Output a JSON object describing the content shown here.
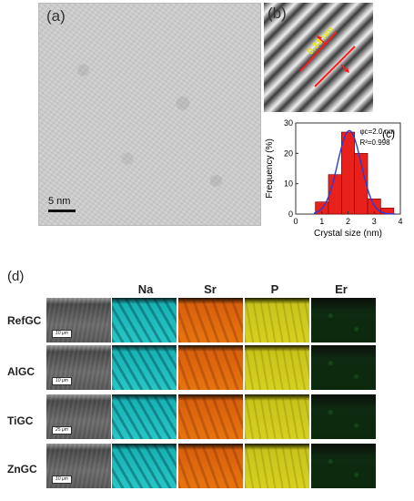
{
  "panel_a": {
    "label": "(a)",
    "scale_bar": "5  nm"
  },
  "panel_b": {
    "label": "(b)",
    "spacing": "0.33 nm"
  },
  "panel_d": {
    "label": "(d)",
    "columns": [
      "Na",
      "Sr",
      "P",
      "Er"
    ],
    "rows": [
      {
        "label": "RefGC",
        "scale": "10 μm"
      },
      {
        "label": "AlGC",
        "scale": "10 μm"
      },
      {
        "label": "TiGC",
        "scale": "25 μm"
      },
      {
        "label": "ZnGC",
        "scale": "10 μm"
      }
    ]
  },
  "chart_data": {
    "type": "bar",
    "panel_label": "(c)",
    "x": [
      1.0,
      1.5,
      2.0,
      2.5,
      3.0,
      3.5
    ],
    "values": [
      4,
      13,
      27,
      20,
      5,
      2
    ],
    "fit_curve": "gaussian",
    "annotation_1": "φc=2.0 nm",
    "annotation_2": "R²=0.998",
    "xlabel": "Crystal size (nm)",
    "ylabel": "Frequency (%)",
    "xlim": [
      0,
      4
    ],
    "ylim": [
      0,
      30
    ],
    "xticks": [
      "0",
      "1",
      "2",
      "3",
      "4"
    ],
    "yticks": [
      "0",
      "10",
      "20",
      "30"
    ],
    "bar_color": "#e8211d",
    "fit_color": "#2a3bd6"
  }
}
